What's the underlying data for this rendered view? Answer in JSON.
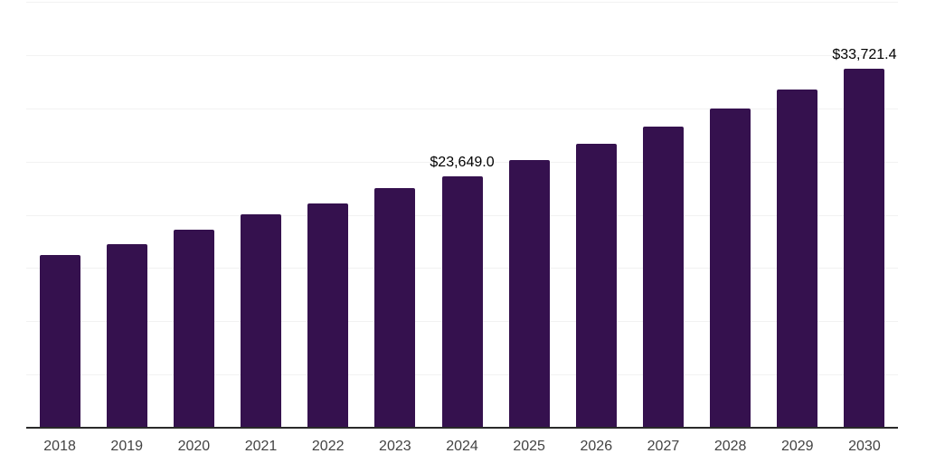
{
  "chart_data": {
    "type": "bar",
    "title": "",
    "xlabel": "",
    "ylabel": "",
    "categories": [
      "2018",
      "2019",
      "2020",
      "2021",
      "2022",
      "2023",
      "2024",
      "2025",
      "2026",
      "2027",
      "2028",
      "2029",
      "2030"
    ],
    "values": [
      16250,
      17230,
      18620,
      20050,
      21100,
      22470,
      23649.0,
      25160,
      26680,
      28270,
      29980,
      31780,
      33721.4
    ],
    "data_labels": [
      "",
      "",
      "",
      "",
      "",
      "",
      "$23,649.0",
      "",
      "",
      "",
      "",
      "",
      "$33,721.4"
    ],
    "ylim": [
      0,
      40000
    ],
    "grid_step": 5000,
    "grid": "horizontal-only",
    "legend": "none",
    "y_tick_labels": "hidden",
    "colors": {
      "bar_fill": "#35114e",
      "axis_line": "#2a2a2a",
      "gridline": "#f2f2f2",
      "tick_label": "#434343",
      "data_label": "#000000",
      "background": "#ffffff"
    }
  }
}
